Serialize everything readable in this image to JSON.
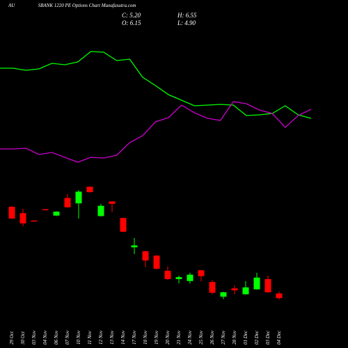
{
  "chart_data": {
    "type": "candlestick",
    "symbol": "AU",
    "title": "SBANK 1220 PE Options Chart Munafasutra.com",
    "stats": [
      "C: 5.20",
      "H: 6.55",
      "O: 6.15",
      "L: 4.90"
    ],
    "categories": [
      "29 Oct",
      "30 Oct",
      "03 Nov",
      "04 Nov",
      "06 Nov",
      "07 Nov",
      "10 Nov",
      "11 Nov",
      "12 Nov",
      "13 Nov",
      "14 Nov",
      "17 Nov",
      "18 Nov",
      "19 Nov",
      "20 Nov",
      "21 Nov",
      "24 Nov",
      "25 Nov",
      "26 Nov",
      "27 Nov",
      "28 Nov",
      "01 Dec",
      "02 Dec",
      "03 Dec",
      "04 Dec"
    ],
    "open": [
      23.9,
      22.6,
      21.1,
      23.4,
      22.1,
      25.7,
      24.6,
      28.0,
      22.0,
      25.0,
      21.6,
      15.6,
      14.8,
      13.9,
      10.8,
      9.1,
      8.7,
      10.9,
      8.5,
      5.5,
      7.2,
      6.0,
      7.0,
      9.1,
      6.15
    ],
    "high": [
      24.0,
      23.5,
      21.1,
      23.4,
      23.0,
      26.5,
      27.3,
      28.1,
      24.5,
      25.0,
      21.7,
      17.5,
      14.9,
      14.0,
      11.7,
      9.8,
      10.4,
      11.0,
      8.9,
      6.5,
      7.8,
      8.7,
      10.4,
      9.8,
      6.55
    ],
    "low": [
      21.4,
      19.9,
      21.0,
      23.3,
      22.0,
      23.7,
      21.5,
      26.8,
      21.9,
      22.8,
      18.7,
      14.2,
      11.5,
      11.1,
      8.9,
      8.2,
      8.2,
      8.6,
      6.0,
      5.0,
      6.0,
      5.9,
      6.9,
      6.3,
      4.9
    ],
    "close": [
      21.5,
      20.5,
      21.0,
      23.3,
      22.9,
      23.8,
      27.0,
      26.9,
      24.1,
      24.5,
      18.8,
      16.0,
      12.9,
      11.2,
      9.1,
      9.5,
      10.0,
      9.7,
      6.3,
      6.4,
      6.8,
      7.4,
      9.4,
      6.4,
      5.2
    ],
    "up_color": "#00ff00",
    "down_color": "#ff0000",
    "ylim": [
      4.25,
      29.9
    ],
    "series": [
      {
        "color": "#00ff00",
        "axis": "y2",
        "values": [
          76,
          76,
          74.5,
          75.5,
          79.5,
          78.5,
          80.5,
          88,
          87.5,
          81.5,
          82.5,
          69.5,
          63.5,
          57,
          53,
          49,
          49.5,
          50,
          49.5,
          42,
          42.5,
          43.5,
          49,
          42.5,
          40
        ]
      },
      {
        "color": "#cc00cc",
        "axis": "y2",
        "values": [
          18,
          18,
          18.5,
          14,
          15.5,
          12,
          8.5,
          12,
          11.5,
          13.5,
          22.5,
          27.5,
          37.5,
          40.5,
          49.5,
          44,
          40,
          38.5,
          52,
          50.5,
          46,
          43.5,
          33.5,
          42,
          46.5
        ]
      }
    ],
    "y2lim": [
      0,
      100
    ]
  }
}
